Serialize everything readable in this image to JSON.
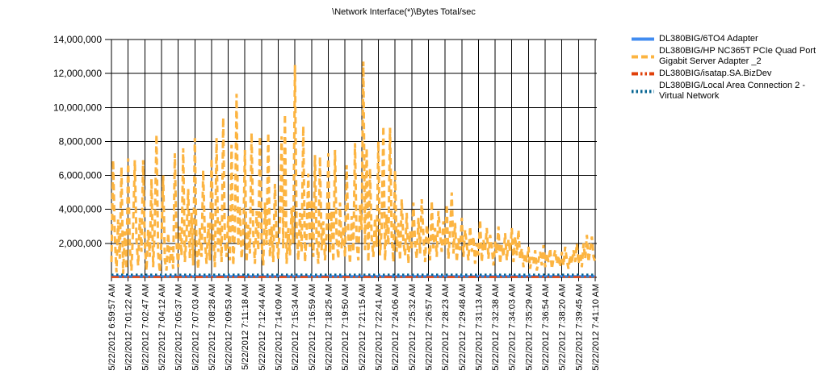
{
  "page": {
    "title": "\\Network Interface(*)\\Bytes Total/sec"
  },
  "chart_data": {
    "type": "line",
    "title": "\\Network Interface(*)\\Bytes Total/sec",
    "ylabel": "",
    "xlabel": "",
    "ylim": [
      0,
      14000000
    ],
    "grid": true,
    "legend_position": "right",
    "y_tick_values": [
      2000000,
      4000000,
      6000000,
      8000000,
      10000000,
      12000000,
      14000000
    ],
    "y_tick_labels": [
      "2,000,000",
      "4,000,000",
      "6,000,000",
      "8,000,000",
      "10,000,000",
      "12,000,000",
      "14,000,000"
    ],
    "x_tick_labels": [
      "5/22/2012 6:59:57 AM",
      "5/22/2012 7:01:22 AM",
      "5/22/2012 7:02:47 AM",
      "5/22/2012 7:04:12 AM",
      "5/22/2012 7:05:37 AM",
      "5/22/2012 7:07:03 AM",
      "5/22/2012 7:08:28 AM",
      "5/22/2012 7:09:53 AM",
      "5/22/2012 7:11:18 AM",
      "5/22/2012 7:12:44 AM",
      "5/22/2012 7:14:09 AM",
      "5/22/2012 7:15:34 AM",
      "5/22/2012 7:16:59 AM",
      "5/22/2012 7:18:25 AM",
      "5/22/2012 7:19:50 AM",
      "5/22/2012 7:21:15 AM",
      "5/22/2012 7:22:41 AM",
      "5/22/2012 7:24:06 AM",
      "5/22/2012 7:25:32 AM",
      "5/22/2012 7:26:57 AM",
      "5/22/2012 7:28:23 AM",
      "5/22/2012 7:29:48 AM",
      "5/22/2012 7:31:13 AM",
      "5/22/2012 7:32:38 AM",
      "5/22/2012 7:34:03 AM",
      "5/22/2012 7:35:29 AM",
      "5/22/2012 7:36:54 AM",
      "5/22/2012 7:38:20 AM",
      "5/22/2012 7:39:45 AM",
      "5/22/2012 7:41:10 AM"
    ],
    "series": [
      {
        "name": "DL380BIG/6TO4 Adapter",
        "color": "#418CF0",
        "style": "solid",
        "values_constant": 70000
      },
      {
        "name": "DL380BIG/HP NC365T PCIe Quad Port Gigabit Server Adapter _2",
        "color": "#FCB441",
        "style": "dashed",
        "values": [
          900000,
          6900000,
          2400000,
          300000,
          3400000,
          1100000,
          6500000,
          200000,
          2700000,
          500000,
          7000000,
          1800000,
          400000,
          2900000,
          6900000,
          2200000,
          700000,
          3500000,
          1500000,
          6900000,
          2000000,
          400000,
          2800000,
          1200000,
          5800000,
          600000,
          3100000,
          8400000,
          1400000,
          300000,
          2200000,
          6000000,
          1000000,
          400000,
          2600000,
          800000,
          1800000,
          500000,
          7300000,
          2100000,
          600000,
          3000000,
          1300000,
          7600000,
          900000,
          2400000,
          5200000,
          1100000,
          3800000,
          700000,
          8200000,
          1600000,
          500000,
          2900000,
          1200000,
          6300000,
          2300000,
          800000,
          3200000,
          1000000,
          7000000,
          2500000,
          600000,
          8200000,
          1500000,
          3300000,
          900000,
          9400000,
          2000000,
          1200000,
          3600000,
          1000000,
          7800000,
          700000,
          2800000,
          10800000,
          1800000,
          4200000,
          1100000,
          2200000,
          7500000,
          900000,
          3100000,
          1400000,
          8500000,
          2600000,
          800000,
          3900000,
          1600000,
          8300000,
          2100000,
          700000,
          4400000,
          1900000,
          8500000,
          1200000,
          3000000,
          900000,
          5500000,
          2400000,
          1100000,
          3400000,
          8300000,
          1700000,
          9600000,
          800000,
          2900000,
          1300000,
          4100000,
          2000000,
          12500000,
          2700000,
          1000000,
          3800000,
          1500000,
          8900000,
          900000,
          2500000,
          6100000,
          1800000,
          4600000,
          1200000,
          7200000,
          2100000,
          800000,
          7100000,
          1600000,
          3300000,
          1000000,
          2600000,
          7300000,
          1400000,
          3900000,
          900000,
          7500000,
          2200000,
          1100000,
          4400000,
          1700000,
          3000000,
          1200000,
          6600000,
          2500000,
          800000,
          3600000,
          1500000,
          7900000,
          2000000,
          1000000,
          4300000,
          2800000,
          12700000,
          1600000,
          7600000,
          900000,
          6400000,
          2300000,
          1200000,
          3500000,
          1800000,
          8000000,
          1300000,
          2900000,
          8900000,
          1000000,
          3700000,
          1900000,
          8800000,
          2400000,
          900000,
          6300000,
          1500000,
          3200000,
          1000000,
          4600000,
          2100000,
          1300000,
          3800000,
          800000,
          2700000,
          1600000,
          4400000,
          2000000,
          1100000,
          3500000,
          1400000,
          4600000,
          2500000,
          900000,
          3100000,
          2200000,
          1000000,
          4500000,
          1700000,
          2900000,
          1200000,
          3900000,
          2600000,
          1500000,
          3300000,
          1800000,
          4300000,
          1100000,
          2700000,
          5000000,
          1400000,
          3200000,
          900000,
          2300000,
          1600000,
          3500000,
          1200000,
          2800000,
          1900000,
          1000000,
          3000000,
          1500000,
          2400000,
          800000,
          2000000,
          1300000,
          3400000,
          900000,
          2200000,
          1600000,
          2900000,
          1100000,
          2500000,
          1800000,
          700000,
          2100000,
          1400000,
          3000000,
          800000,
          1900000,
          1200000,
          2600000,
          1000000,
          2200000,
          1500000,
          2900000,
          900000,
          2400000,
          1300000,
          2800000,
          1100000,
          1700000,
          600000,
          1400000,
          900000,
          1800000,
          500000,
          1200000,
          800000,
          1600000,
          400000,
          1000000,
          1500000,
          700000,
          1900000,
          600000,
          1400000,
          900000,
          1700000,
          500000,
          1100000,
          1600000,
          800000,
          1300000,
          600000,
          1500000,
          700000,
          1800000,
          1000000,
          500000,
          1300000,
          800000,
          1600000,
          900000,
          2000000,
          800000,
          1400000,
          600000,
          2000000,
          1100000,
          2500000,
          900000,
          1700000,
          2400000,
          1200000,
          900000
        ]
      },
      {
        "name": "DL380BIG/isatap.SA.BizDev",
        "color": "#E0400A",
        "style": "dash-dot-dot",
        "values_constant": 20000
      },
      {
        "name": "DL380BIG/Local Area Connection 2 - Virtual Network",
        "color": "#056492",
        "style": "dotted",
        "values_constant": 160000
      }
    ]
  }
}
